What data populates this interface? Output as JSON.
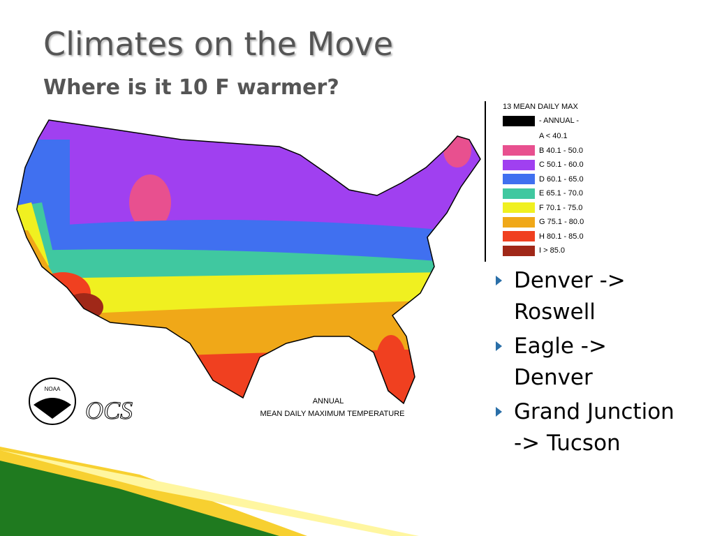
{
  "slide": {
    "title": "Climates on the Move",
    "subtitle": "Where is it 10 F warmer?",
    "map": {
      "caption_top": "ANNUAL",
      "caption_bottom": "MEAN DAILY MAXIMUM TEMPERATURE",
      "logo_noaa": "NOAA",
      "logo_ocs": "OCS"
    },
    "legend": {
      "title": "13 MEAN DAILY MAX",
      "subtitle": "- ANNUAL -",
      "subtitle_color": "#000000",
      "items": [
        {
          "label": "A < 40.1",
          "color": "#ffffff"
        },
        {
          "label": "B 40.1 - 50.0",
          "color": "#e8508f"
        },
        {
          "label": "C 50.1 - 60.0",
          "color": "#a040f0"
        },
        {
          "label": "D 60.1 - 65.0",
          "color": "#4070f0"
        },
        {
          "label": "E 65.1 - 70.0",
          "color": "#40c8a0"
        },
        {
          "label": "F 70.1 - 75.0",
          "color": "#f0f020"
        },
        {
          "label": "G 75.1 - 80.0",
          "color": "#f0a818"
        },
        {
          "label": "H 80.1 - 85.0",
          "color": "#f04020"
        },
        {
          "label": "I > 85.0",
          "color": "#a02818"
        }
      ]
    },
    "bullets": [
      "Denver -> Roswell",
      "Eagle -> Denver",
      "Grand Junction -> Tucson"
    ]
  }
}
